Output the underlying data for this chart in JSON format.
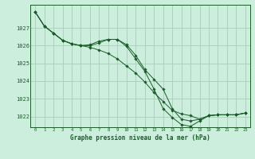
{
  "title": "Graphe pression niveau de la mer (hPa)",
  "background_color": "#cceedd",
  "grid_color": "#aaccbb",
  "line_color": "#1a5c28",
  "xlim": [
    -0.5,
    23.5
  ],
  "ylim": [
    1021.4,
    1028.3
  ],
  "yticks": [
    1022,
    1023,
    1024,
    1025,
    1026,
    1027
  ],
  "xticks": [
    0,
    1,
    2,
    3,
    4,
    5,
    6,
    7,
    8,
    9,
    10,
    11,
    12,
    13,
    14,
    15,
    16,
    17,
    18,
    19,
    20,
    21,
    22,
    23
  ],
  "series": [
    [
      1027.9,
      1027.1,
      1026.7,
      1026.3,
      1026.1,
      1026.0,
      1026.0,
      1026.15,
      1026.35,
      1026.35,
      1026.05,
      1025.45,
      1024.65,
      1024.1,
      1023.55,
      1022.45,
      1021.85,
      1021.75,
      1021.85,
      1022.05,
      1022.1,
      1022.1,
      1022.1,
      1022.2
    ],
    [
      1027.9,
      1027.1,
      1026.7,
      1026.3,
      1026.1,
      1026.0,
      1025.9,
      1025.75,
      1025.55,
      1025.25,
      1024.85,
      1024.45,
      1023.95,
      1023.35,
      1022.85,
      1022.35,
      1022.15,
      1022.05,
      1021.85,
      1022.05,
      1022.1,
      1022.1,
      1022.1,
      1022.2
    ],
    [
      1027.9,
      1027.1,
      1026.7,
      1026.3,
      1026.1,
      1026.0,
      1026.05,
      1026.25,
      1026.35,
      1026.35,
      1025.95,
      1025.25,
      1024.55,
      1023.55,
      1022.45,
      1021.95,
      1021.55,
      1021.45,
      1021.75,
      1022.05,
      1022.1,
      1022.1,
      1022.1,
      1022.2
    ]
  ]
}
